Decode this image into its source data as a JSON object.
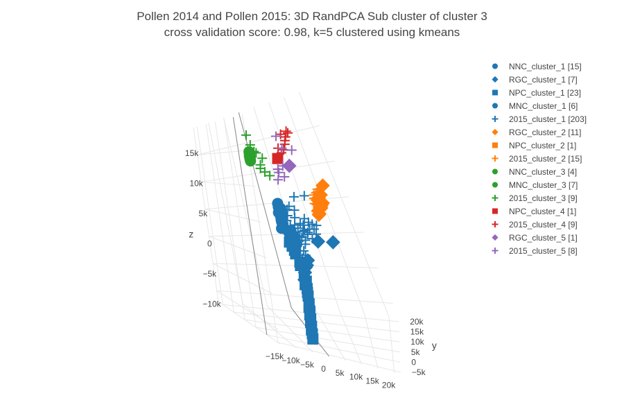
{
  "chart_data": {
    "type": "scatter",
    "title_line1": "Pollen 2014 and Pollen 2015: 3D RandPCA Sub cluster of cluster 3",
    "title_line2": "cross validation score: 0.98, k=5 clustered using kmeans",
    "axes": {
      "x": {
        "title": "",
        "range": [
          -15000,
          22000
        ],
        "ticks": [
          "−15k",
          "−10k",
          "−5k",
          "0",
          "5k",
          "10k",
          "15k",
          "20k"
        ],
        "tick_values": [
          -15000,
          -10000,
          -5000,
          0,
          5000,
          10000,
          15000,
          20000
        ]
      },
      "y": {
        "title": "y",
        "range": [
          -6000,
          22000
        ],
        "ticks": [
          "−5k",
          "0",
          "5k",
          "10k",
          "15k",
          "20k"
        ],
        "tick_values": [
          -5000,
          0,
          5000,
          10000,
          15000,
          20000
        ]
      },
      "z": {
        "title": "z",
        "range": [
          -12000,
          20000
        ],
        "ticks": [
          "−10k",
          "−5k",
          "0",
          "5k",
          "10k",
          "15k"
        ],
        "tick_values": [
          -10000,
          -5000,
          0,
          5000,
          10000,
          15000
        ]
      }
    },
    "grid": true,
    "legend_position": "right",
    "series": [
      {
        "name": "NNC_cluster_1 [15]",
        "symbol": "circle",
        "color": "#1f77b4",
        "points": [
          [
            -7500,
            -1500,
            7300
          ],
          [
            -7800,
            -1800,
            6500
          ],
          [
            -6800,
            -1000,
            5700
          ],
          [
            -7200,
            -2000,
            6900
          ],
          [
            -7000,
            -1200,
            5200
          ],
          [
            -6500,
            -800,
            4800
          ],
          [
            -7600,
            -1600,
            7800
          ],
          [
            -6700,
            -1300,
            6100
          ],
          [
            -7300,
            -1700,
            5500
          ],
          [
            -6400,
            -1100,
            6300
          ],
          [
            -7100,
            -1400,
            4500
          ],
          [
            -6900,
            -1500,
            7100
          ],
          [
            -7400,
            -1900,
            5900
          ],
          [
            -6600,
            -900,
            6700
          ],
          [
            -7700,
            -2100,
            4300
          ]
        ]
      },
      {
        "name": "RGC_cluster_1 [7]",
        "symbol": "diamond",
        "color": "#1f77b4",
        "points": [
          [
            6500,
            -400,
            3000
          ],
          [
            2000,
            -1500,
            3000
          ],
          [
            -2000,
            -2000,
            -500
          ],
          [
            -3000,
            -2500,
            -1500
          ],
          [
            -2500,
            -2200,
            -800
          ],
          [
            -1500,
            -1800,
            200
          ],
          [
            -3500,
            -2800,
            -2500
          ]
        ]
      },
      {
        "name": "NPC_cluster_1 [23]",
        "symbol": "square",
        "color": "#1f77b4",
        "points": [
          [
            -3800,
            -4500,
            -4500
          ],
          [
            -3900,
            -4800,
            -5500
          ],
          [
            -4000,
            -5000,
            -6500
          ],
          [
            -4100,
            -5200,
            -7500
          ],
          [
            -4200,
            -5400,
            -8500
          ],
          [
            -4300,
            -5600,
            -9500
          ],
          [
            -4350,
            -5700,
            -10200
          ],
          [
            -3700,
            -4200,
            -3500
          ],
          [
            -3600,
            -4000,
            -2500
          ],
          [
            -5200,
            -3000,
            1000
          ],
          [
            -5500,
            -3200,
            1500
          ],
          [
            -6000,
            -2500,
            3000
          ],
          [
            -6200,
            -2400,
            2500
          ],
          [
            -5800,
            -2800,
            2000
          ],
          [
            -4500,
            -3500,
            -500
          ],
          [
            -4700,
            -3800,
            0
          ],
          [
            -4000,
            -4100,
            -1500
          ],
          [
            -4200,
            -4300,
            -3000
          ],
          [
            -3900,
            -4600,
            -4000
          ],
          [
            -4100,
            -4900,
            -6000
          ],
          [
            -4200,
            -5100,
            -7000
          ],
          [
            -4300,
            -5300,
            -8000
          ],
          [
            -4400,
            -5500,
            -9000
          ]
        ]
      },
      {
        "name": "MNC_cluster_1 [6]",
        "symbol": "circle",
        "color": "#1f77b4",
        "points": [
          [
            -5000,
            -2800,
            3500
          ],
          [
            -5500,
            -2600,
            4200
          ],
          [
            -4800,
            -3000,
            2800
          ],
          [
            -6100,
            -2200,
            4000
          ],
          [
            -5300,
            -2900,
            3200
          ],
          [
            -4600,
            -3100,
            2400
          ]
        ]
      },
      {
        "name": "2015_cluster_1 [203]",
        "symbol": "cross",
        "color": "#1f77b4",
        "points": [
          [
            -4000,
            -2000,
            5000
          ],
          [
            -3500,
            -1500,
            6000
          ],
          [
            -2000,
            -1000,
            5200
          ],
          [
            -1000,
            -800,
            4300
          ],
          [
            0,
            -500,
            4000
          ],
          [
            2000,
            0,
            4500
          ],
          [
            3000,
            500,
            5000
          ],
          [
            4000,
            1000,
            6500
          ],
          [
            5500,
            1500,
            7800
          ],
          [
            1000,
            1000,
            9000
          ],
          [
            -2000,
            500,
            8800
          ],
          [
            -5000,
            -1000,
            7000
          ],
          [
            -5500,
            -1800,
            6200
          ],
          [
            -3000,
            -2000,
            3500
          ],
          [
            -4500,
            -2500,
            2000
          ],
          [
            -2500,
            -2200,
            1500
          ],
          [
            -3500,
            -3000,
            500
          ],
          [
            -4000,
            -3500,
            -1000
          ],
          [
            -3000,
            -3200,
            -2000
          ],
          [
            -2000,
            -2500,
            2500
          ],
          [
            -1500,
            -1800,
            3000
          ],
          [
            -500,
            -1200,
            3800
          ],
          [
            500,
            -700,
            4500
          ],
          [
            1500,
            -300,
            5200
          ],
          [
            -6000,
            -2000,
            5500
          ],
          [
            -6500,
            -1500,
            6500
          ],
          [
            -4500,
            -1200,
            7500
          ],
          [
            -3000,
            -800,
            7000
          ],
          [
            -1000,
            -1500,
            6000
          ],
          [
            200,
            -1100,
            5500
          ],
          [
            -2500,
            -3000,
            1000
          ],
          [
            -3800,
            -2700,
            2800
          ],
          [
            -4200,
            -2300,
            4000
          ],
          [
            -5200,
            -2000,
            4800
          ],
          [
            1000,
            -500,
            3200
          ],
          [
            2500,
            200,
            3800
          ],
          [
            -1800,
            -1700,
            4200
          ],
          [
            -2800,
            -2600,
            3400
          ],
          [
            -3300,
            -2100,
            4600
          ],
          [
            -1200,
            -900,
            5000
          ]
        ]
      },
      {
        "name": "RGC_cluster_2 [11]",
        "symbol": "diamond",
        "color": "#ff7f0e",
        "points": [
          [
            10500,
            9000,
            9500
          ],
          [
            10000,
            10000,
            8000
          ],
          [
            9500,
            10500,
            7500
          ],
          [
            9800,
            10800,
            6000
          ],
          [
            9200,
            11500,
            5500
          ],
          [
            9600,
            11200,
            7000
          ],
          [
            10200,
            10200,
            6800
          ],
          [
            9400,
            11800,
            5000
          ],
          [
            9900,
            10600,
            6400
          ],
          [
            9700,
            11000,
            7200
          ],
          [
            9300,
            12000,
            4800
          ]
        ]
      },
      {
        "name": "NPC_cluster_2 [1]",
        "symbol": "square",
        "color": "#ff7f0e",
        "points": [
          [
            9600,
            11300,
            6600
          ]
        ]
      },
      {
        "name": "2015_cluster_2 [15]",
        "symbol": "cross",
        "color": "#ff7f0e",
        "points": [
          [
            7000,
            8000,
            7800
          ],
          [
            9000,
            9500,
            8500
          ],
          [
            7500,
            9000,
            5800
          ],
          [
            8500,
            9500,
            7000
          ],
          [
            9500,
            10200,
            8800
          ],
          [
            8800,
            10500,
            6200
          ],
          [
            9200,
            10800,
            7500
          ],
          [
            7800,
            9800,
            6800
          ],
          [
            8200,
            10000,
            8000
          ],
          [
            9400,
            11000,
            6500
          ],
          [
            8600,
            10400,
            7200
          ],
          [
            8000,
            9600,
            7600
          ],
          [
            9100,
            10600,
            8200
          ],
          [
            8400,
            10100,
            6600
          ],
          [
            8900,
            10700,
            7400
          ]
        ]
      },
      {
        "name": "NNC_cluster_3 [4]",
        "symbol": "circle",
        "color": "#2ca02c",
        "points": [
          [
            -9500,
            5500,
            14500
          ],
          [
            -9400,
            5600,
            14000
          ],
          [
            -9600,
            5400,
            14300
          ],
          [
            -9450,
            5550,
            13800
          ]
        ]
      },
      {
        "name": "MNC_cluster_3 [7]",
        "symbol": "circle",
        "color": "#2ca02c",
        "points": [
          [
            -9600,
            5200,
            14800
          ],
          [
            -9350,
            5700,
            14200
          ],
          [
            -9550,
            5300,
            13600
          ],
          [
            -9500,
            5450,
            15000
          ],
          [
            -9300,
            5600,
            14600
          ],
          [
            -9700,
            5100,
            13900
          ],
          [
            -9420,
            5500,
            14400
          ]
        ]
      },
      {
        "name": "2015_cluster_3 [9]",
        "symbol": "cross",
        "color": "#2ca02c",
        "points": [
          [
            -9000,
            6500,
            17500
          ],
          [
            -6500,
            5000,
            14000
          ],
          [
            -6000,
            3500,
            11500
          ],
          [
            -7000,
            5500,
            13000
          ],
          [
            -8500,
            6200,
            16000
          ],
          [
            -7500,
            4800,
            12500
          ],
          [
            -8000,
            5800,
            15000
          ],
          [
            -6800,
            4200,
            12000
          ],
          [
            -7800,
            5200,
            14800
          ]
        ]
      },
      {
        "name": "NPC_cluster_4 [1]",
        "symbol": "square",
        "color": "#d62728",
        "points": [
          [
            -3000,
            4000,
            14000
          ]
        ]
      },
      {
        "name": "2015_cluster_4 [9]",
        "symbol": "cross",
        "color": "#d62728",
        "points": [
          [
            -1000,
            4500,
            17500
          ],
          [
            1500,
            6000,
            17800
          ],
          [
            2200,
            6500,
            17500
          ],
          [
            0,
            5000,
            16000
          ],
          [
            -2500,
            4000,
            15500
          ],
          [
            -500,
            5000,
            15200
          ],
          [
            500,
            5500,
            16500
          ],
          [
            -1500,
            4500,
            14800
          ],
          [
            1000,
            5800,
            17000
          ]
        ]
      },
      {
        "name": "RGC_cluster_5 [1]",
        "symbol": "diamond",
        "color": "#9467bd",
        "points": [
          [
            -500,
            3500,
            13000
          ]
        ]
      },
      {
        "name": "2015_cluster_5 [8]",
        "symbol": "cross",
        "color": "#9467bd",
        "points": [
          [
            -2000,
            5000,
            17200
          ],
          [
            2500,
            6500,
            15000
          ],
          [
            -3500,
            3500,
            12000
          ],
          [
            -4500,
            2500,
            11000
          ],
          [
            -1500,
            4000,
            15500
          ],
          [
            -2500,
            3000,
            13000
          ],
          [
            -3000,
            2000,
            11500
          ],
          [
            -3800,
            3200,
            12500
          ]
        ]
      }
    ]
  }
}
